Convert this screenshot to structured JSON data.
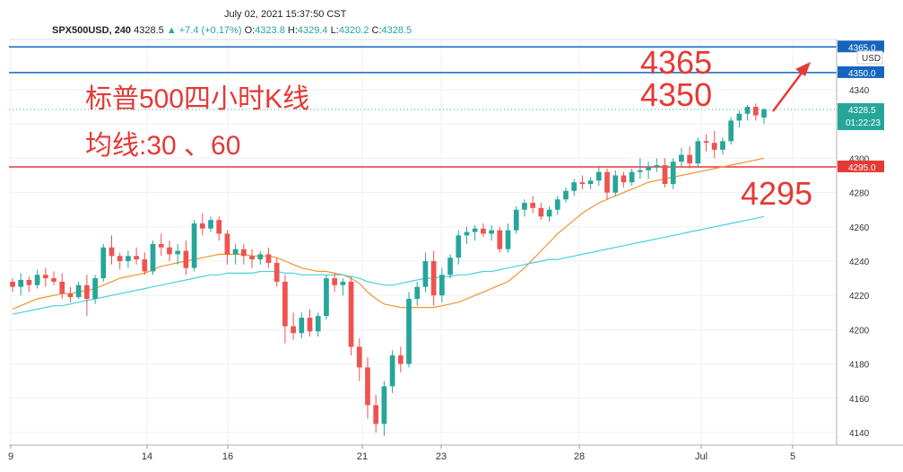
{
  "header": {
    "datetime": "July 02, 2021 15:37:50 CST",
    "symbol": "SPX500USD, 240",
    "last": "4328.5",
    "change": "▲ +7.4 (+0.17%)",
    "o_label": "O:",
    "o_value": "4323.8",
    "h_label": "H:",
    "h_value": "4329.4",
    "l_label": "L:",
    "l_value": "4320.2",
    "c_label": "C:",
    "c_value": "4328.5"
  },
  "annotations": {
    "title": "标普500四小时K线",
    "ma_label": "均线:30 、60",
    "level_4365": "4365",
    "level_4350": "4350",
    "level_4295": "4295"
  },
  "price_axis": {
    "currency": "USD",
    "current_price": "4328.5",
    "countdown": "01:22:23",
    "tag_4365": "4365.0",
    "tag_4350": "4350.0",
    "tag_4295": "4295.0"
  },
  "colors": {
    "up": "#26a69a",
    "down": "#ef5350",
    "ma30": "#f5922f",
    "ma60": "#4dd0e1",
    "hline_blue": "#1565c0",
    "hline_red": "#e53935",
    "annotation_red": "#e53935"
  },
  "chart_data": {
    "type": "candlestick",
    "title": "",
    "xlabel": "",
    "ylabel": "",
    "ylim": [
      4130,
      4370
    ],
    "y_ticks": [
      4140,
      4160,
      4180,
      4200,
      4220,
      4240,
      4260,
      4280,
      4300,
      4320,
      4340
    ],
    "x_ticks": [
      "9",
      "14",
      "16",
      "21",
      "23",
      "28",
      "Jul",
      "5"
    ],
    "horizontal_levels": [
      {
        "value": 4365,
        "color": "#1565c0"
      },
      {
        "value": 4350,
        "color": "#1565c0"
      },
      {
        "value": 4295,
        "color": "#e53935"
      }
    ],
    "candles": [
      [
        4228,
        4230,
        4222,
        4225
      ],
      [
        4225,
        4233,
        4220,
        4229
      ],
      [
        4229,
        4231,
        4222,
        4226
      ],
      [
        4226,
        4235,
        4224,
        4232
      ],
      [
        4232,
        4236,
        4225,
        4230
      ],
      [
        4230,
        4234,
        4226,
        4228
      ],
      [
        4228,
        4233,
        4218,
        4221
      ],
      [
        4221,
        4225,
        4216,
        4219
      ],
      [
        4219,
        4228,
        4218,
        4226
      ],
      [
        4226,
        4232,
        4208,
        4218
      ],
      [
        4218,
        4232,
        4215,
        4230
      ],
      [
        4230,
        4250,
        4228,
        4248
      ],
      [
        4248,
        4255,
        4238,
        4243
      ],
      [
        4243,
        4245,
        4235,
        4240
      ],
      [
        4240,
        4246,
        4236,
        4243
      ],
      [
        4243,
        4248,
        4238,
        4241
      ],
      [
        4241,
        4245,
        4232,
        4234
      ],
      [
        4234,
        4252,
        4232,
        4250
      ],
      [
        4250,
        4256,
        4243,
        4248
      ],
      [
        4248,
        4252,
        4240,
        4244
      ],
      [
        4244,
        4250,
        4238,
        4246
      ],
      [
        4246,
        4252,
        4232,
        4236
      ],
      [
        4236,
        4264,
        4234,
        4262
      ],
      [
        4262,
        4268,
        4255,
        4259
      ],
      [
        4259,
        4266,
        4257,
        4264
      ],
      [
        4264,
        4266,
        4252,
        4256
      ],
      [
        4256,
        4258,
        4238,
        4244
      ],
      [
        4244,
        4250,
        4238,
        4247
      ],
      [
        4247,
        4250,
        4238,
        4243
      ],
      [
        4243,
        4247,
        4236,
        4241
      ],
      [
        4241,
        4246,
        4238,
        4244
      ],
      [
        4244,
        4248,
        4236,
        4239
      ],
      [
        4239,
        4242,
        4225,
        4228
      ],
      [
        4228,
        4232,
        4192,
        4202
      ],
      [
        4202,
        4210,
        4194,
        4198
      ],
      [
        4198,
        4210,
        4195,
        4207
      ],
      [
        4207,
        4212,
        4196,
        4199
      ],
      [
        4199,
        4210,
        4196,
        4208
      ],
      [
        4208,
        4232,
        4206,
        4230
      ],
      [
        4230,
        4233,
        4222,
        4226
      ],
      [
        4226,
        4230,
        4220,
        4228
      ],
      [
        4228,
        4231,
        4185,
        4190
      ],
      [
        4190,
        4195,
        4170,
        4178
      ],
      [
        4178,
        4184,
        4148,
        4156
      ],
      [
        4156,
        4162,
        4140,
        4145
      ],
      [
        4145,
        4170,
        4138,
        4167
      ],
      [
        4167,
        4188,
        4163,
        4185
      ],
      [
        4185,
        4190,
        4175,
        4180
      ],
      [
        4180,
        4222,
        4178,
        4218
      ],
      [
        4218,
        4228,
        4214,
        4225
      ],
      [
        4225,
        4245,
        4222,
        4240
      ],
      [
        4240,
        4246,
        4214,
        4220
      ],
      [
        4220,
        4236,
        4216,
        4232
      ],
      [
        4232,
        4244,
        4230,
        4242
      ],
      [
        4242,
        4258,
        4238,
        4255
      ],
      [
        4255,
        4260,
        4250,
        4257
      ],
      [
        4257,
        4261,
        4252,
        4259
      ],
      [
        4259,
        4262,
        4254,
        4256
      ],
      [
        4256,
        4261,
        4252,
        4258
      ],
      [
        4258,
        4260,
        4245,
        4247
      ],
      [
        4247,
        4262,
        4245,
        4258
      ],
      [
        4258,
        4272,
        4256,
        4270
      ],
      [
        4270,
        4276,
        4266,
        4274
      ],
      [
        4274,
        4278,
        4268,
        4271
      ],
      [
        4271,
        4274,
        4264,
        4266
      ],
      [
        4266,
        4272,
        4263,
        4270
      ],
      [
        4270,
        4278,
        4267,
        4276
      ],
      [
        4276,
        4283,
        4274,
        4281
      ],
      [
        4281,
        4288,
        4278,
        4286
      ],
      [
        4286,
        4290,
        4282,
        4285
      ],
      [
        4285,
        4289,
        4282,
        4287
      ],
      [
        4287,
        4295,
        4284,
        4292
      ],
      [
        4292,
        4294,
        4276,
        4280
      ],
      [
        4280,
        4293,
        4278,
        4290
      ],
      [
        4290,
        4292,
        4283,
        4286
      ],
      [
        4286,
        4294,
        4284,
        4292
      ],
      [
        4292,
        4300,
        4288,
        4293
      ],
      [
        4293,
        4298,
        4288,
        4295
      ],
      [
        4295,
        4300,
        4292,
        4296
      ],
      [
        4296,
        4300,
        4283,
        4285
      ],
      [
        4285,
        4300,
        4282,
        4298
      ],
      [
        4298,
        4306,
        4295,
        4302
      ],
      [
        4302,
        4307,
        4294,
        4297
      ],
      [
        4297,
        4312,
        4295,
        4310
      ],
      [
        4310,
        4314,
        4304,
        4309
      ],
      [
        4309,
        4316,
        4300,
        4305
      ],
      [
        4305,
        4312,
        4302,
        4310
      ],
      [
        4310,
        4324,
        4308,
        4322
      ],
      [
        4322,
        4328,
        4318,
        4326
      ],
      [
        4326,
        4331,
        4322,
        4330
      ],
      [
        4330,
        4332,
        4322,
        4325
      ],
      [
        4323.8,
        4329.4,
        4320.2,
        4328.5
      ]
    ],
    "series": [
      {
        "values": [
          4212,
          4214,
          4216,
          4218,
          4219,
          4220,
          4221,
          4221,
          4222,
          4223,
          4224,
          4226,
          4228,
          4230,
          4231,
          4232,
          4233,
          4235,
          4237,
          4238,
          4239,
          4240,
          4241,
          4242,
          4243,
          4244,
          4244,
          4244,
          4244,
          4243,
          4243,
          4243,
          4242,
          4240,
          4238,
          4236,
          4235,
          4234,
          4234,
          4233,
          4232,
          4230,
          4227,
          4222,
          4218,
          4215,
          4214,
          4213,
          4213,
          4213,
          4213,
          4213,
          4214,
          4215,
          4216,
          4218,
          4220,
          4222,
          4224,
          4226,
          4228,
          4232,
          4236,
          4241,
          4246,
          4251,
          4256,
          4260,
          4264,
          4268,
          4271,
          4274,
          4276,
          4278,
          4280,
          4282,
          4284,
          4286,
          4287,
          4288,
          4289,
          4290,
          4291,
          4292,
          4293,
          4294,
          4295,
          4296,
          4297,
          4298,
          4299,
          4300
        ]
      },
      {
        "values": [
          4209,
          4210,
          4211,
          4212,
          4213,
          4214,
          4214,
          4215,
          4216,
          4217,
          4218,
          4219,
          4220,
          4221,
          4222,
          4223,
          4224,
          4225,
          4226,
          4227,
          4228,
          4229,
          4230,
          4231,
          4232,
          4232,
          4233,
          4233,
          4233,
          4233,
          4234,
          4234,
          4234,
          4233,
          4233,
          4232,
          4232,
          4232,
          4232,
          4232,
          4232,
          4231,
          4230,
          4228,
          4227,
          4226,
          4226,
          4227,
          4228,
          4229,
          4230,
          4230,
          4231,
          4231,
          4232,
          4232,
          4233,
          4234,
          4234,
          4235,
          4236,
          4237,
          4238,
          4239,
          4240,
          4241,
          4241,
          4242,
          4243,
          4244,
          4245,
          4246,
          4247,
          4248,
          4249,
          4250,
          4251,
          4252,
          4253,
          4254,
          4255,
          4256,
          4257,
          4258,
          4259,
          4260,
          4261,
          4262,
          4263,
          4264,
          4265,
          4266
        ]
      }
    ]
  }
}
